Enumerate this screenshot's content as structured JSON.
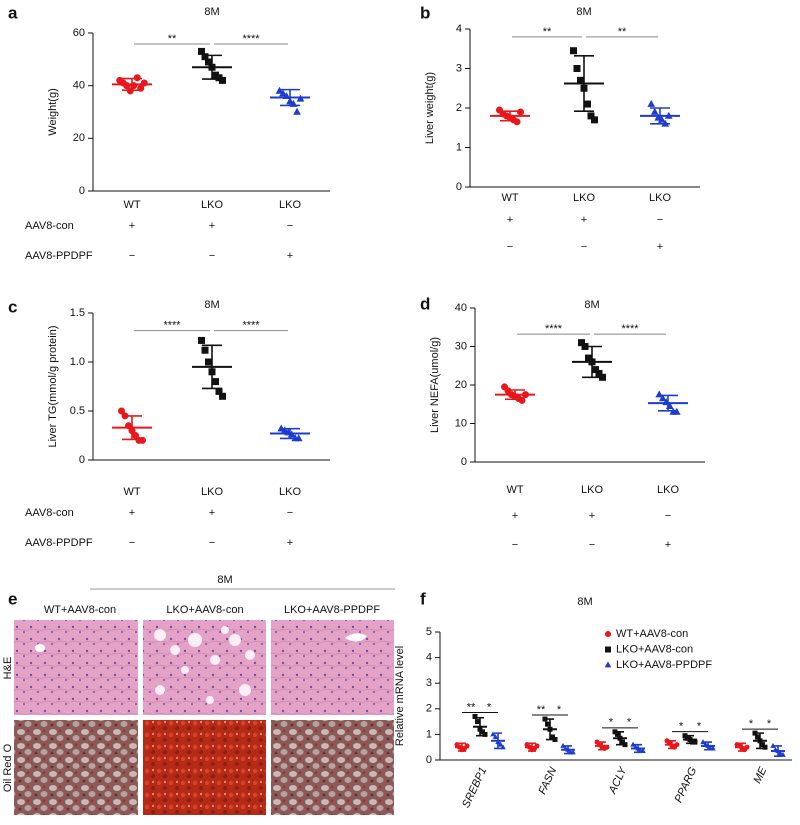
{
  "chart_data": [
    {
      "type": "dotplot",
      "label": "a",
      "title": "8M",
      "y_label": "Weight(g)",
      "categories": [
        "WT",
        "LKO",
        "LKO"
      ],
      "ylim": [
        0,
        60
      ],
      "yticks": [
        0,
        20,
        40,
        60
      ],
      "groups": [
        {
          "color": "#e8171b",
          "marker": "circle",
          "mean": 40.5,
          "sd": 2.2,
          "points": [
            42,
            41,
            40,
            38,
            40,
            43,
            39,
            41
          ]
        },
        {
          "color": "#111111",
          "marker": "square",
          "mean": 47,
          "sd": 4.5,
          "points": [
            53,
            51,
            49,
            47,
            44,
            43,
            42
          ]
        },
        {
          "color": "#1d3ccf",
          "marker": "triangle",
          "mean": 35.5,
          "sd": 3,
          "points": [
            38,
            37,
            36,
            34,
            33,
            30,
            35
          ]
        }
      ],
      "significance": [
        "**",
        "****"
      ],
      "rows": [
        {
          "label": "AAV8-con",
          "signs": [
            "+",
            "+",
            "−"
          ]
        },
        {
          "label": "AAV8-PPDPF",
          "signs": [
            "−",
            "−",
            "+"
          ]
        }
      ]
    },
    {
      "type": "dotplot",
      "label": "b",
      "title": "8M",
      "y_label": "Liver weight(g)",
      "categories": [
        "WT",
        "LKO",
        "LKO"
      ],
      "ylim": [
        0,
        4
      ],
      "yticks": [
        0,
        1,
        2,
        3,
        4
      ],
      "groups": [
        {
          "color": "#e8171b",
          "marker": "circle",
          "mean": 1.8,
          "sd": 0.12,
          "points": [
            1.95,
            1.85,
            1.8,
            1.75,
            1.7,
            1.65,
            1.9
          ]
        },
        {
          "color": "#111111",
          "marker": "square",
          "mean": 2.62,
          "sd": 0.7,
          "points": [
            3.45,
            3.0,
            2.7,
            2.5,
            2.1,
            1.8,
            1.7
          ]
        },
        {
          "color": "#1d3ccf",
          "marker": "triangle",
          "mean": 1.8,
          "sd": 0.2,
          "points": [
            2.1,
            1.9,
            1.75,
            1.7,
            1.6,
            1.8
          ]
        }
      ],
      "significance": [
        "**",
        "**"
      ],
      "rows": [
        {
          "signs": [
            "+",
            "+",
            "−"
          ]
        },
        {
          "signs": [
            "−",
            "−",
            "+"
          ]
        }
      ]
    },
    {
      "type": "dotplot",
      "label": "c",
      "title": "8M",
      "y_label": "Liver TG(mmol/g protein)",
      "categories": [
        "WT",
        "LKO",
        "LKO"
      ],
      "ylim": [
        0,
        1.5
      ],
      "yticks": [
        0,
        0.5,
        {
          "value": 1,
          "label": "1.0"
        },
        1.5
      ],
      "groups": [
        {
          "color": "#e8171b",
          "marker": "circle",
          "mean": 0.33,
          "sd": 0.12,
          "points": [
            0.5,
            0.45,
            0.35,
            0.3,
            0.25,
            0.2,
            0.2
          ]
        },
        {
          "color": "#111111",
          "marker": "square",
          "mean": 0.95,
          "sd": 0.22,
          "points": [
            1.22,
            1.12,
            1.0,
            0.9,
            0.8,
            0.7,
            0.65
          ]
        },
        {
          "color": "#1d3ccf",
          "marker": "triangle",
          "mean": 0.27,
          "sd": 0.05,
          "points": [
            0.32,
            0.3,
            0.28,
            0.26,
            0.22,
            0.22
          ]
        }
      ],
      "significance": [
        "****",
        "****"
      ],
      "rows": [
        {
          "label": "AAV8-con",
          "signs": [
            "+",
            "+",
            "−"
          ]
        },
        {
          "label": "AAV8-PPDPF",
          "signs": [
            "−",
            "−",
            "+"
          ]
        }
      ]
    },
    {
      "type": "dotplot",
      "label": "d",
      "title": "8M",
      "y_label": "Liver NEFA(umol/g)",
      "categories": [
        "WT",
        "LKO",
        "LKO"
      ],
      "ylim": [
        0,
        40
      ],
      "yticks": [
        0,
        10,
        20,
        30,
        40
      ],
      "groups": [
        {
          "color": "#e8171b",
          "marker": "circle",
          "mean": 17.5,
          "sd": 1.2,
          "points": [
            19.5,
            18.5,
            17.5,
            17,
            16.5,
            16,
            17.5
          ]
        },
        {
          "color": "#111111",
          "marker": "square",
          "mean": 26,
          "sd": 4,
          "points": [
            31,
            30,
            27,
            26,
            24,
            23,
            22
          ]
        },
        {
          "color": "#1d3ccf",
          "marker": "triangle",
          "mean": 15.3,
          "sd": 2,
          "points": [
            17.5,
            16.5,
            15.5,
            14.5,
            13,
            13
          ]
        }
      ],
      "significance": [
        "****",
        "****"
      ],
      "rows": [
        {
          "signs": [
            "+",
            "+",
            "−"
          ]
        },
        {
          "signs": [
            "−",
            "−",
            "+"
          ]
        }
      ]
    },
    {
      "type": "grouped_dotplot",
      "label": "f",
      "title": "8M",
      "y_label": "Relative mRNA level",
      "categories": [
        "SREBP1",
        "FASN",
        "ACLY",
        "PPARG",
        "ME"
      ],
      "ylim": [
        0,
        5
      ],
      "yticks": [
        0,
        1,
        2,
        3,
        4,
        5
      ],
      "series": [
        {
          "name": "WT+AAV8-con",
          "color": "#e8171b",
          "marker": "circle",
          "means": [
            0.5,
            0.5,
            0.55,
            0.6,
            0.5
          ],
          "sds": [
            0.15,
            0.15,
            0.15,
            0.15,
            0.15
          ],
          "points": [
            [
              0.6,
              0.5,
              0.4,
              0.45,
              0.55
            ],
            [
              0.6,
              0.5,
              0.4,
              0.45,
              0.55
            ],
            [
              0.7,
              0.6,
              0.5,
              0.45,
              0.5
            ],
            [
              0.75,
              0.65,
              0.55,
              0.5,
              0.6
            ],
            [
              0.6,
              0.55,
              0.45,
              0.4,
              0.5
            ]
          ]
        },
        {
          "name": "LKO+AAV8-con",
          "color": "#111111",
          "marker": "square",
          "means": [
            1.3,
            1.2,
            0.85,
            0.8,
            0.75
          ],
          "sds": [
            0.35,
            0.4,
            0.25,
            0.15,
            0.3
          ],
          "points": [
            [
              1.7,
              1.5,
              1.2,
              1.1,
              1.0
            ],
            [
              1.6,
              1.4,
              1.2,
              0.9,
              0.8
            ],
            [
              1.1,
              1.0,
              0.85,
              0.7,
              0.6
            ],
            [
              0.95,
              0.85,
              0.8,
              0.7,
              0.7
            ],
            [
              1.05,
              0.9,
              0.75,
              0.6,
              0.5
            ]
          ]
        },
        {
          "name": "LKO+AAV8-PPDPF",
          "color": "#1d3ccf",
          "marker": "triangle",
          "means": [
            0.75,
            0.4,
            0.45,
            0.55,
            0.35
          ],
          "sds": [
            0.3,
            0.15,
            0.15,
            0.15,
            0.2
          ],
          "points": [
            [
              1.0,
              0.9,
              0.7,
              0.6,
              0.5
            ],
            [
              0.55,
              0.45,
              0.4,
              0.3,
              0.3
            ],
            [
              0.6,
              0.5,
              0.45,
              0.35,
              0.35
            ],
            [
              0.7,
              0.6,
              0.55,
              0.45,
              0.45
            ],
            [
              0.55,
              0.4,
              0.35,
              0.25,
              0.2
            ]
          ]
        }
      ],
      "significance": [
        [
          "**",
          "*"
        ],
        [
          "**",
          "*"
        ],
        [
          "*",
          "*"
        ],
        [
          "*",
          "*"
        ],
        [
          "*",
          "*"
        ]
      ]
    }
  ],
  "histology": {
    "label": "e",
    "title": "8M",
    "columns": [
      "WT+AAV8-con",
      "LKO+AAV8-con",
      "LKO+AAV8-PPDPF"
    ],
    "rows": [
      "H&E",
      "Oil Red O"
    ]
  }
}
